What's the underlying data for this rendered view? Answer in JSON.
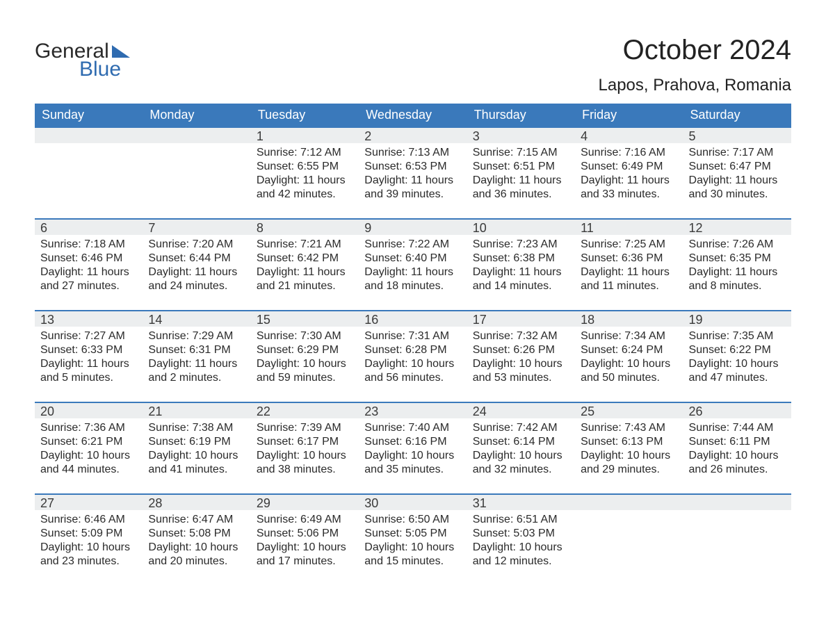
{
  "logo": {
    "word1": "General",
    "word2": "Blue",
    "accent_color": "#2f6bb0"
  },
  "title": "October 2024",
  "location": "Lapos, Prahova, Romania",
  "colors": {
    "header_bg": "#3a79bb",
    "header_text": "#ffffff",
    "daynum_bg": "#eceeef",
    "week_rule": "#3a79bb",
    "body_text": "#2a2a2a"
  },
  "days_of_week": [
    "Sunday",
    "Monday",
    "Tuesday",
    "Wednesday",
    "Thursday",
    "Friday",
    "Saturday"
  ],
  "layout": {
    "columns": 7,
    "rows": 5,
    "leading_blanks": 2
  },
  "days": [
    {
      "n": 1,
      "sunrise": "7:12 AM",
      "sunset": "6:55 PM",
      "daylight": "11 hours and 42 minutes."
    },
    {
      "n": 2,
      "sunrise": "7:13 AM",
      "sunset": "6:53 PM",
      "daylight": "11 hours and 39 minutes."
    },
    {
      "n": 3,
      "sunrise": "7:15 AM",
      "sunset": "6:51 PM",
      "daylight": "11 hours and 36 minutes."
    },
    {
      "n": 4,
      "sunrise": "7:16 AM",
      "sunset": "6:49 PM",
      "daylight": "11 hours and 33 minutes."
    },
    {
      "n": 5,
      "sunrise": "7:17 AM",
      "sunset": "6:47 PM",
      "daylight": "11 hours and 30 minutes."
    },
    {
      "n": 6,
      "sunrise": "7:18 AM",
      "sunset": "6:46 PM",
      "daylight": "11 hours and 27 minutes."
    },
    {
      "n": 7,
      "sunrise": "7:20 AM",
      "sunset": "6:44 PM",
      "daylight": "11 hours and 24 minutes."
    },
    {
      "n": 8,
      "sunrise": "7:21 AM",
      "sunset": "6:42 PM",
      "daylight": "11 hours and 21 minutes."
    },
    {
      "n": 9,
      "sunrise": "7:22 AM",
      "sunset": "6:40 PM",
      "daylight": "11 hours and 18 minutes."
    },
    {
      "n": 10,
      "sunrise": "7:23 AM",
      "sunset": "6:38 PM",
      "daylight": "11 hours and 14 minutes."
    },
    {
      "n": 11,
      "sunrise": "7:25 AM",
      "sunset": "6:36 PM",
      "daylight": "11 hours and 11 minutes."
    },
    {
      "n": 12,
      "sunrise": "7:26 AM",
      "sunset": "6:35 PM",
      "daylight": "11 hours and 8 minutes."
    },
    {
      "n": 13,
      "sunrise": "7:27 AM",
      "sunset": "6:33 PM",
      "daylight": "11 hours and 5 minutes."
    },
    {
      "n": 14,
      "sunrise": "7:29 AM",
      "sunset": "6:31 PM",
      "daylight": "11 hours and 2 minutes."
    },
    {
      "n": 15,
      "sunrise": "7:30 AM",
      "sunset": "6:29 PM",
      "daylight": "10 hours and 59 minutes."
    },
    {
      "n": 16,
      "sunrise": "7:31 AM",
      "sunset": "6:28 PM",
      "daylight": "10 hours and 56 minutes."
    },
    {
      "n": 17,
      "sunrise": "7:32 AM",
      "sunset": "6:26 PM",
      "daylight": "10 hours and 53 minutes."
    },
    {
      "n": 18,
      "sunrise": "7:34 AM",
      "sunset": "6:24 PM",
      "daylight": "10 hours and 50 minutes."
    },
    {
      "n": 19,
      "sunrise": "7:35 AM",
      "sunset": "6:22 PM",
      "daylight": "10 hours and 47 minutes."
    },
    {
      "n": 20,
      "sunrise": "7:36 AM",
      "sunset": "6:21 PM",
      "daylight": "10 hours and 44 minutes."
    },
    {
      "n": 21,
      "sunrise": "7:38 AM",
      "sunset": "6:19 PM",
      "daylight": "10 hours and 41 minutes."
    },
    {
      "n": 22,
      "sunrise": "7:39 AM",
      "sunset": "6:17 PM",
      "daylight": "10 hours and 38 minutes."
    },
    {
      "n": 23,
      "sunrise": "7:40 AM",
      "sunset": "6:16 PM",
      "daylight": "10 hours and 35 minutes."
    },
    {
      "n": 24,
      "sunrise": "7:42 AM",
      "sunset": "6:14 PM",
      "daylight": "10 hours and 32 minutes."
    },
    {
      "n": 25,
      "sunrise": "7:43 AM",
      "sunset": "6:13 PM",
      "daylight": "10 hours and 29 minutes."
    },
    {
      "n": 26,
      "sunrise": "7:44 AM",
      "sunset": "6:11 PM",
      "daylight": "10 hours and 26 minutes."
    },
    {
      "n": 27,
      "sunrise": "6:46 AM",
      "sunset": "5:09 PM",
      "daylight": "10 hours and 23 minutes."
    },
    {
      "n": 28,
      "sunrise": "6:47 AM",
      "sunset": "5:08 PM",
      "daylight": "10 hours and 20 minutes."
    },
    {
      "n": 29,
      "sunrise": "6:49 AM",
      "sunset": "5:06 PM",
      "daylight": "10 hours and 17 minutes."
    },
    {
      "n": 30,
      "sunrise": "6:50 AM",
      "sunset": "5:05 PM",
      "daylight": "10 hours and 15 minutes."
    },
    {
      "n": 31,
      "sunrise": "6:51 AM",
      "sunset": "5:03 PM",
      "daylight": "10 hours and 12 minutes."
    }
  ],
  "labels": {
    "sunrise": "Sunrise:",
    "sunset": "Sunset:",
    "daylight": "Daylight:"
  }
}
